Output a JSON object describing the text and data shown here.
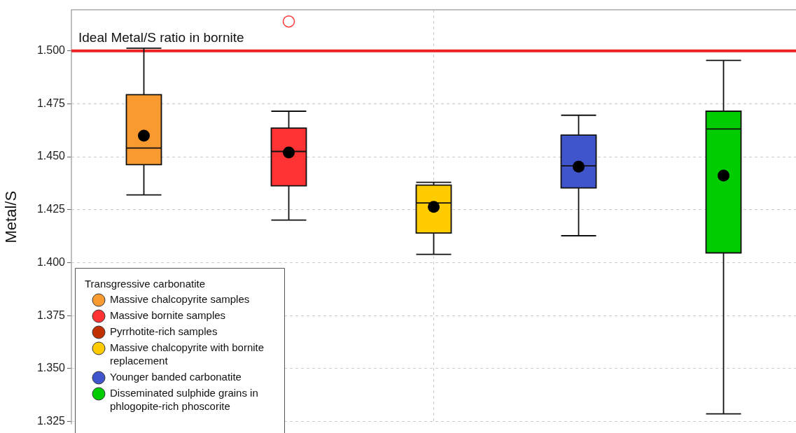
{
  "chart_data": {
    "type": "box",
    "ylabel": "Metal/S",
    "legend_title": "Transgressive carbonatite",
    "categories": [
      null,
      null,
      null,
      null,
      null
    ],
    "ylim": [
      1.3237,
      1.5194
    ],
    "yticks": [
      {
        "value": 1.325,
        "label": "1.325"
      },
      {
        "value": 1.35,
        "label": "1.350"
      },
      {
        "value": 1.375,
        "label": "1.375"
      },
      {
        "value": 1.4,
        "label": "1.400"
      },
      {
        "value": 1.425,
        "label": "1.425"
      },
      {
        "value": 1.45,
        "label": "1.450"
      },
      {
        "value": 1.475,
        "label": "1.475"
      },
      {
        "value": 1.5,
        "label": "1.500"
      }
    ],
    "grid": true,
    "legend": "bottom left",
    "marker": "circle",
    "ref_lines": [
      {
        "axis": "y",
        "value": 1.5,
        "label": "Ideal Metal/S ratio in bornite",
        "color": "#ee2222"
      }
    ],
    "colors": [
      "#f99a30",
      "#ff3333",
      "#ffcc00",
      "#4055cc",
      "#00cc00"
    ],
    "boxes": [
      {
        "low": 1.432,
        "q1": 1.4463,
        "median": 1.4541,
        "q3": 1.4793,
        "high": 1.5013,
        "mean": 1.4599
      },
      {
        "low": 1.4201,
        "q1": 1.4363,
        "median": 1.4525,
        "q3": 1.4635,
        "high": 1.4715,
        "mean": 1.452,
        "outliers": [
          1.5139
        ]
      },
      {
        "low": 1.4039,
        "q1": 1.414,
        "median": 1.4282,
        "q3": 1.4366,
        "high": 1.4379,
        "mean": 1.4263
      },
      {
        "low": 1.4127,
        "q1": 1.4353,
        "median": 1.4457,
        "q3": 1.4602,
        "high": 1.4696,
        "mean": 1.4453
      },
      {
        "low": 1.3286,
        "q1": 1.4046,
        "median": 1.4631,
        "q3": 1.4715,
        "high": 1.4955,
        "mean": 1.4411
      }
    ],
    "series": [
      {
        "name": "Massive chalcopyrite samples",
        "color": "#f99a30",
        "values": [
          null,
          null,
          null,
          null,
          null
        ]
      },
      {
        "name": "Massive bornite samples",
        "color": "#ff3333",
        "values": [
          null,
          null,
          null,
          null,
          null
        ]
      },
      {
        "name": "Pyrrhotite-rich samples",
        "color": "#c03000",
        "values": [
          null,
          null,
          null,
          null,
          null
        ]
      },
      {
        "name": "Massive chalcopyrite with bornite replacement",
        "color": "#ffcc00",
        "values": [
          null,
          null,
          null,
          null,
          null
        ]
      },
      {
        "name": "Younger banded carbonatite",
        "color": "#4055cc",
        "values": [
          null,
          null,
          null,
          null,
          null
        ]
      },
      {
        "name": "Disseminated sulphide grains in phlogopite-rich phoscorite",
        "color": "#00cc00",
        "values": [
          null,
          null,
          null,
          null,
          null
        ]
      }
    ]
  }
}
